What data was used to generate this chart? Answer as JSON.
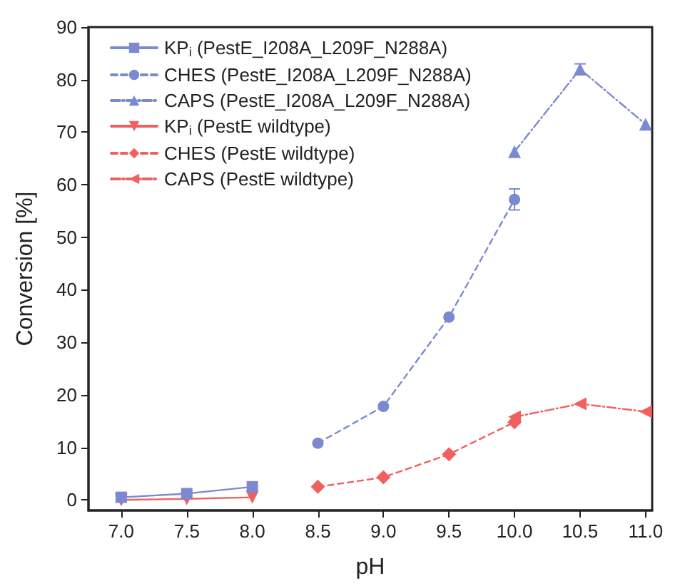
{
  "chart_data": {
    "type": "line",
    "xlabel": "pH",
    "ylabel": "Conversion [%]",
    "xlim": [
      6.75,
      11.05
    ],
    "ylim": [
      -2,
      90
    ],
    "xticks": [
      {
        "value": 7,
        "label": "7.0"
      },
      {
        "value": 7.5,
        "label": "7.5"
      },
      {
        "value": 8,
        "label": "8.0"
      },
      {
        "value": 8.5,
        "label": "8.5"
      },
      {
        "value": 9,
        "label": "9.0"
      },
      {
        "value": 9.5,
        "label": "9.5"
      },
      {
        "value": 10,
        "label": "10.0"
      },
      {
        "value": 10.5,
        "label": "10.5"
      },
      {
        "value": 11,
        "label": "11.0"
      }
    ],
    "yticks": [
      0,
      10,
      20,
      30,
      40,
      50,
      60,
      70,
      80,
      90
    ],
    "grid": false,
    "legend": "top left",
    "series": [
      {
        "name": "KP$_{i}$ (PestE_I208A_L209F_N288A)",
        "color": "#7b8ad0",
        "marker": "square",
        "line_style": "solid",
        "x": [
          7,
          7.5,
          8
        ],
        "values": [
          0.5,
          1.2,
          2.5
        ]
      },
      {
        "name": "CHES (PestE_I208A_L209F_N288A)",
        "color": "#7b8ad0",
        "marker": "circle",
        "line_style": "dashed",
        "x": [
          8.5,
          9,
          9.5,
          10
        ],
        "values": [
          10.8,
          17.8,
          34.8,
          57.2
        ],
        "errors": [
          null,
          null,
          null,
          2
        ]
      },
      {
        "name": "CAPS (PestE_I208A_L209F_N288A)",
        "color": "#7b8ad0",
        "marker": "triangle",
        "line_style": "dashdot",
        "x": [
          10,
          10.5,
          11
        ],
        "values": [
          66.3,
          82,
          71.5
        ],
        "errors": [
          null,
          1,
          null
        ]
      },
      {
        "name": "KP$_{i}$ (PestE wildtype)",
        "color": "#f0605f",
        "marker": "triangle-down",
        "line_style": "solid",
        "x": [
          7,
          7.5,
          8
        ],
        "values": [
          0,
          0.2,
          0.5
        ]
      },
      {
        "name": "CHES (PestE wildtype)",
        "color": "#f0605f",
        "marker": "diamond",
        "line_style": "dashed",
        "x": [
          8.5,
          9,
          9.5,
          10
        ],
        "values": [
          2.5,
          4.3,
          8.7,
          14.8
        ]
      },
      {
        "name": "CAPS (PestE wildtype)",
        "color": "#f0605f",
        "marker": "triangle-left",
        "line_style": "dashdot",
        "x": [
          10,
          10.5,
          11
        ],
        "values": [
          15.8,
          18.3,
          16.8
        ]
      }
    ]
  }
}
